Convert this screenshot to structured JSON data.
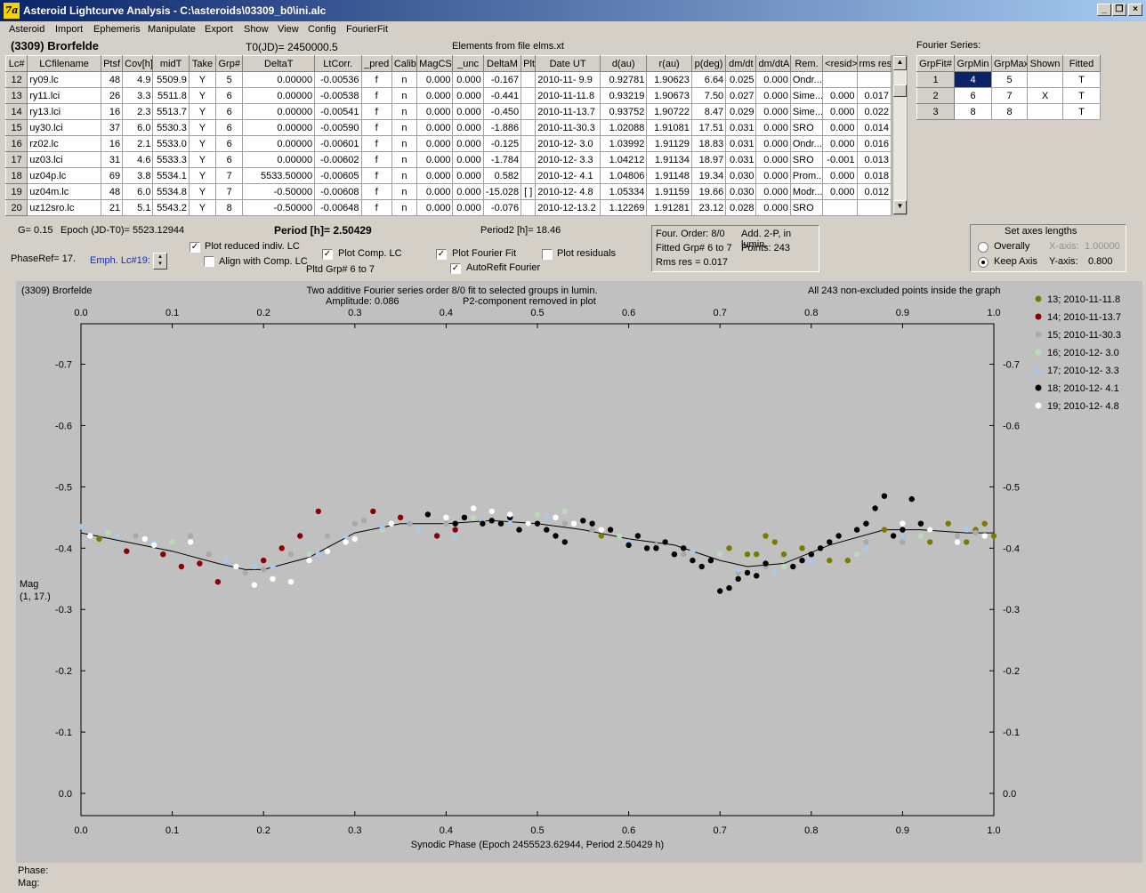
{
  "window": {
    "title": "Asteroid Lightcurve Analysis - C:\\asteroids\\03309_b0\\ini.alc",
    "icon_label": "7a"
  },
  "menu": [
    "Asteroid",
    "Import",
    "Ephemeris",
    "Manipulate",
    "Export",
    "Show",
    "View",
    "Config",
    "FourierFit"
  ],
  "header": {
    "asteroid_name": "(3309) Brorfelde",
    "t0": "T0(JD)= 2450000.5",
    "elements": "Elements from file elms.xt",
    "fourier_label": "Fourier Series:"
  },
  "table": {
    "columns": [
      "Lc#",
      "LCfilename",
      "Ptsf",
      "Cov[h]",
      "midT",
      "Take",
      "Grp#",
      "DeltaT",
      "LtCorr.",
      "_pred",
      "Calib.",
      "MagCS",
      "_unc",
      "DeltaM",
      "Plt",
      "Date UT",
      "d(au)",
      "r(au)",
      "p(deg)",
      "dm/dt",
      "dm/dtA",
      "Rem.",
      "<resid>",
      "rms res"
    ],
    "rows": [
      [
        "12",
        "ry09.lc",
        "48",
        "4.9",
        "5509.9",
        "Y",
        "5",
        "0.00000",
        "-0.00536",
        "f",
        "n",
        "0.000",
        "0.000",
        "-0.167",
        "",
        "2010-11- 9.9",
        "0.92781",
        "1.90623",
        "6.64",
        "0.025",
        "0.000",
        "Ondr...",
        "",
        ""
      ],
      [
        "13",
        "ry11.lci",
        "26",
        "3.3",
        "5511.8",
        "Y",
        "6",
        "0.00000",
        "-0.00538",
        "f",
        "n",
        "0.000",
        "0.000",
        "-0.441",
        "",
        "2010-11-11.8",
        "0.93219",
        "1.90673",
        "7.50",
        "0.027",
        "0.000",
        "Sime...",
        "0.000",
        "0.017"
      ],
      [
        "14",
        "ry13.lci",
        "16",
        "2.3",
        "5513.7",
        "Y",
        "6",
        "0.00000",
        "-0.00541",
        "f",
        "n",
        "0.000",
        "0.000",
        "-0.450",
        "",
        "2010-11-13.7",
        "0.93752",
        "1.90722",
        "8.47",
        "0.029",
        "0.000",
        "Sime...",
        "0.000",
        "0.022"
      ],
      [
        "15",
        "uy30.lci",
        "37",
        "6.0",
        "5530.3",
        "Y",
        "6",
        "0.00000",
        "-0.00590",
        "f",
        "n",
        "0.000",
        "0.000",
        "-1.886",
        "",
        "2010-11-30.3",
        "1.02088",
        "1.91081",
        "17.51",
        "0.031",
        "0.000",
        "SRO",
        "0.000",
        "0.014"
      ],
      [
        "16",
        "rz02.lc",
        "16",
        "2.1",
        "5533.0",
        "Y",
        "6",
        "0.00000",
        "-0.00601",
        "f",
        "n",
        "0.000",
        "0.000",
        "-0.125",
        "",
        "2010-12- 3.0",
        "1.03992",
        "1.91129",
        "18.83",
        "0.031",
        "0.000",
        "Ondr...",
        "0.000",
        "0.016"
      ],
      [
        "17",
        "uz03.lci",
        "31",
        "4.6",
        "5533.3",
        "Y",
        "6",
        "0.00000",
        "-0.00602",
        "f",
        "n",
        "0.000",
        "0.000",
        "-1.784",
        "",
        "2010-12- 3.3",
        "1.04212",
        "1.91134",
        "18.97",
        "0.031",
        "0.000",
        "SRO",
        "-0.001",
        "0.013"
      ],
      [
        "18",
        "uz04p.lc",
        "69",
        "3.8",
        "5534.1",
        "Y",
        "7",
        "5533.50000",
        "-0.00605",
        "f",
        "n",
        "0.000",
        "0.000",
        "0.582",
        "",
        "2010-12- 4.1",
        "1.04806",
        "1.91148",
        "19.34",
        "0.030",
        "0.000",
        "Prom...",
        "0.000",
        "0.018"
      ],
      [
        "19",
        "uz04m.lc",
        "48",
        "6.0",
        "5534.8",
        "Y",
        "7",
        "-0.50000",
        "-0.00608",
        "f",
        "n",
        "0.000",
        "0.000",
        "-15.028",
        "[ ]",
        "2010-12- 4.8",
        "1.05334",
        "1.91159",
        "19.66",
        "0.030",
        "0.000",
        "Modr...",
        "0.000",
        "0.012"
      ],
      [
        "20",
        "uz12sro.lc",
        "21",
        "5.1",
        "5543.2",
        "Y",
        "8",
        "-0.50000",
        "-0.00648",
        "f",
        "n",
        "0.000",
        "0.000",
        "-0.076",
        "",
        "2010-12-13.2",
        "1.12269",
        "1.91281",
        "23.12",
        "0.028",
        "0.000",
        "SRO",
        "",
        ""
      ]
    ]
  },
  "fourier_table": {
    "columns": [
      "GrpFit#",
      "GrpMin",
      "GrpMax",
      "Shown",
      "Fitted"
    ],
    "rows": [
      [
        "1",
        "4",
        "5",
        "",
        "T"
      ],
      [
        "2",
        "6",
        "7",
        "X",
        "T"
      ],
      [
        "3",
        "8",
        "8",
        "",
        "T"
      ]
    ]
  },
  "params": {
    "g": "G= 0.15",
    "epoch": "Epoch (JD-T0)= 5523.12944",
    "period": "Period [h]= 2.50429",
    "period2": "Period2 [h]= 18.46",
    "phaseref": "PhaseRef= 17.",
    "emph": "Emph. Lc#19:",
    "plot_reduced": "Plot reduced indiv. LC",
    "align": "Align with Comp. LC",
    "plot_comp": "Plot Comp. LC",
    "pltd_grp": "Pltd Grp#  6   to   7",
    "plot_fourier": "Plot Fourier Fit",
    "autorefit": "AutoRefit Fourier",
    "plot_resid": "Plot residuals"
  },
  "info_box": {
    "order": "Four. Order:  8/0",
    "add": "Add. 2-P, in lumin.",
    "fitted": "Fitted Grp# 6 to 7",
    "points": "Points: 243",
    "rms": "Rms res      = 0.017"
  },
  "axes_box": {
    "title": "Set axes lengths",
    "overall": "Overally",
    "keep": "Keep Axis",
    "xaxis_label": "X-axis:",
    "xaxis_value": "1.00000",
    "yaxis_label": "Y-axis:",
    "yaxis_value": "0.800"
  },
  "plot": {
    "corner_label": "(3309) Brorfelde",
    "title1": "Two additive Fourier series order 8/0 fit to selected groups in lumin.",
    "amplitude": "Amplitude: 0.086",
    "p2": "P2-component removed in plot",
    "right_note": "All 243 non-excluded points inside the graph",
    "ylabel1": "Mag",
    "ylabel2": "(1, 17.)",
    "xlabel": "Synodic Phase (Epoch 2455523.62944, Period 2.50429 h)",
    "status_phase": "Phase:",
    "status_mag": "Mag:"
  },
  "chart_data": {
    "type": "scatter",
    "xlim": [
      0,
      1
    ],
    "ylim": [
      -0.8,
      0.0
    ],
    "y_inverted": true,
    "xticks": [
      "0.0",
      "0.1",
      "0.2",
      "0.3",
      "0.4",
      "0.5",
      "0.6",
      "0.7",
      "0.8",
      "0.9",
      "1.0"
    ],
    "yticks": [
      "-0.7",
      "-0.6",
      "-0.5",
      "-0.4",
      "-0.3",
      "-0.2",
      "-0.1",
      "0.0"
    ],
    "legend_placement": "right",
    "series": [
      {
        "name": "13; 2010-11-11.8",
        "color": "#7a7a00",
        "points": [
          [
            0.02,
            -0.415
          ],
          [
            0.75,
            -0.42
          ],
          [
            0.76,
            -0.41
          ],
          [
            0.79,
            -0.4
          ],
          [
            0.8,
            -0.39
          ],
          [
            0.82,
            -0.38
          ],
          [
            0.84,
            -0.38
          ],
          [
            0.88,
            -0.43
          ],
          [
            0.95,
            -0.44
          ],
          [
            0.97,
            -0.41
          ],
          [
            0.98,
            -0.43
          ],
          [
            1.0,
            -0.42
          ],
          [
            0.73,
            -0.39
          ],
          [
            0.71,
            -0.4
          ],
          [
            0.74,
            -0.39
          ],
          [
            0.77,
            -0.39
          ],
          [
            0.9,
            -0.42
          ],
          [
            0.93,
            -0.41
          ],
          [
            0.99,
            -0.44
          ],
          [
            0.58,
            -0.43
          ],
          [
            0.57,
            -0.42
          ]
        ]
      },
      {
        "name": "14; 2010-11-13.7",
        "color": "#8b0000",
        "points": [
          [
            0.05,
            -0.395
          ],
          [
            0.09,
            -0.39
          ],
          [
            0.11,
            -0.37
          ],
          [
            0.13,
            -0.375
          ],
          [
            0.15,
            -0.345
          ],
          [
            0.2,
            -0.38
          ],
          [
            0.22,
            -0.4
          ],
          [
            0.24,
            -0.42
          ],
          [
            0.26,
            -0.46
          ],
          [
            0.32,
            -0.46
          ],
          [
            0.35,
            -0.45
          ],
          [
            0.39,
            -0.42
          ],
          [
            0.41,
            -0.43
          ]
        ]
      },
      {
        "name": "15; 2010-11-30.3",
        "color": "#a9a9a9",
        "points": [
          [
            0.06,
            -0.42
          ],
          [
            0.12,
            -0.42
          ],
          [
            0.14,
            -0.39
          ],
          [
            0.18,
            -0.36
          ],
          [
            0.2,
            -0.365
          ],
          [
            0.23,
            -0.39
          ],
          [
            0.27,
            -0.42
          ],
          [
            0.3,
            -0.44
          ],
          [
            0.31,
            -0.445
          ],
          [
            0.36,
            -0.44
          ],
          [
            0.4,
            -0.44
          ],
          [
            0.42,
            -0.45
          ],
          [
            0.53,
            -0.44
          ],
          [
            0.56,
            -0.43
          ],
          [
            0.6,
            -0.41
          ],
          [
            0.63,
            -0.405
          ],
          [
            0.66,
            -0.39
          ],
          [
            0.72,
            -0.36
          ],
          [
            0.75,
            -0.37
          ],
          [
            0.8,
            -0.38
          ],
          [
            0.86,
            -0.41
          ],
          [
            0.9,
            -0.41
          ],
          [
            0.96,
            -0.42
          ],
          [
            0.98,
            -0.425
          ]
        ]
      },
      {
        "name": "16; 2010-12- 3.0",
        "color": "#b8dcb8",
        "points": [
          [
            0.03,
            -0.425
          ],
          [
            0.1,
            -0.41
          ],
          [
            0.17,
            -0.37
          ],
          [
            0.25,
            -0.39
          ],
          [
            0.33,
            -0.43
          ],
          [
            0.43,
            -0.45
          ],
          [
            0.5,
            -0.455
          ],
          [
            0.53,
            -0.46
          ],
          [
            0.59,
            -0.42
          ],
          [
            0.64,
            -0.41
          ],
          [
            0.7,
            -0.39
          ],
          [
            0.77,
            -0.37
          ],
          [
            0.85,
            -0.39
          ],
          [
            0.92,
            -0.42
          ]
        ]
      },
      {
        "name": "17; 2010-12- 3.3",
        "color": "#a8c8ec",
        "points": [
          [
            0.0,
            -0.435
          ],
          [
            0.04,
            -0.42
          ],
          [
            0.08,
            -0.41
          ],
          [
            0.16,
            -0.38
          ],
          [
            0.19,
            -0.37
          ],
          [
            0.21,
            -0.37
          ],
          [
            0.26,
            -0.39
          ],
          [
            0.29,
            -0.42
          ],
          [
            0.33,
            -0.435
          ],
          [
            0.37,
            -0.43
          ],
          [
            0.41,
            -0.42
          ],
          [
            0.44,
            -0.445
          ],
          [
            0.47,
            -0.44
          ],
          [
            0.51,
            -0.45
          ],
          [
            0.6,
            -0.41
          ],
          [
            0.67,
            -0.395
          ],
          [
            0.72,
            -0.365
          ],
          [
            0.76,
            -0.36
          ],
          [
            0.8,
            -0.38
          ],
          [
            0.86,
            -0.4
          ],
          [
            0.9,
            -0.42
          ],
          [
            0.97,
            -0.43
          ]
        ]
      },
      {
        "name": "18; 2010-12- 4.1",
        "color": "#000000",
        "points": [
          [
            0.38,
            -0.455
          ],
          [
            0.41,
            -0.44
          ],
          [
            0.42,
            -0.45
          ],
          [
            0.44,
            -0.44
          ],
          [
            0.45,
            -0.445
          ],
          [
            0.46,
            -0.44
          ],
          [
            0.48,
            -0.43
          ],
          [
            0.47,
            -0.45
          ],
          [
            0.49,
            -0.44
          ],
          [
            0.5,
            -0.44
          ],
          [
            0.51,
            -0.43
          ],
          [
            0.52,
            -0.42
          ],
          [
            0.53,
            -0.41
          ],
          [
            0.55,
            -0.445
          ],
          [
            0.56,
            -0.44
          ],
          [
            0.58,
            -0.43
          ],
          [
            0.6,
            -0.405
          ],
          [
            0.61,
            -0.42
          ],
          [
            0.62,
            -0.4
          ],
          [
            0.63,
            -0.4
          ],
          [
            0.64,
            -0.41
          ],
          [
            0.65,
            -0.39
          ],
          [
            0.66,
            -0.4
          ],
          [
            0.67,
            -0.38
          ],
          [
            0.68,
            -0.37
          ],
          [
            0.69,
            -0.38
          ],
          [
            0.7,
            -0.33
          ],
          [
            0.71,
            -0.335
          ],
          [
            0.72,
            -0.35
          ],
          [
            0.73,
            -0.36
          ],
          [
            0.74,
            -0.355
          ],
          [
            0.75,
            -0.375
          ],
          [
            0.78,
            -0.37
          ],
          [
            0.79,
            -0.38
          ],
          [
            0.8,
            -0.39
          ],
          [
            0.81,
            -0.4
          ],
          [
            0.82,
            -0.41
          ],
          [
            0.83,
            -0.42
          ],
          [
            0.85,
            -0.43
          ],
          [
            0.86,
            -0.44
          ],
          [
            0.87,
            -0.465
          ],
          [
            0.88,
            -0.485
          ],
          [
            0.89,
            -0.42
          ],
          [
            0.9,
            -0.43
          ],
          [
            0.91,
            -0.48
          ],
          [
            0.92,
            -0.44
          ],
          [
            0.93,
            -0.43
          ]
        ]
      },
      {
        "name": "19; 2010-12- 4.8",
        "color": "#ffffff",
        "points": [
          [
            0.01,
            -0.42
          ],
          [
            0.07,
            -0.415
          ],
          [
            0.08,
            -0.405
          ],
          [
            0.12,
            -0.41
          ],
          [
            0.17,
            -0.37
          ],
          [
            0.19,
            -0.34
          ],
          [
            0.21,
            -0.35
          ],
          [
            0.23,
            -0.345
          ],
          [
            0.25,
            -0.38
          ],
          [
            0.27,
            -0.395
          ],
          [
            0.29,
            -0.41
          ],
          [
            0.3,
            -0.415
          ],
          [
            0.34,
            -0.44
          ],
          [
            0.4,
            -0.45
          ],
          [
            0.43,
            -0.465
          ],
          [
            0.45,
            -0.46
          ],
          [
            0.47,
            -0.455
          ],
          [
            0.49,
            -0.44
          ],
          [
            0.52,
            -0.45
          ],
          [
            0.54,
            -0.44
          ],
          [
            0.57,
            -0.43
          ],
          [
            0.9,
            -0.44
          ],
          [
            0.93,
            -0.43
          ],
          [
            0.96,
            -0.41
          ],
          [
            0.99,
            -0.42
          ]
        ]
      }
    ],
    "fit_curve": {
      "color": "#000000"
    }
  }
}
